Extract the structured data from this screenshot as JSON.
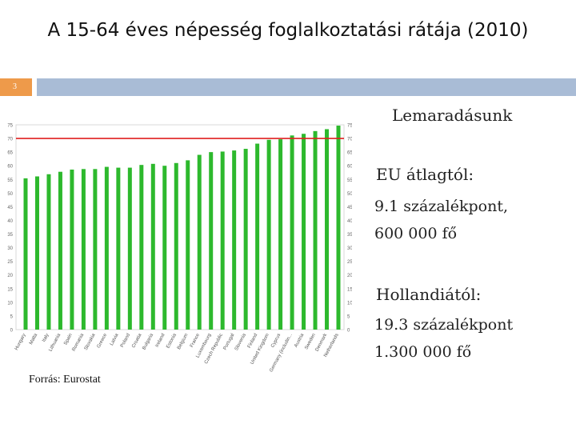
{
  "slide": {
    "title": "A 15-64 éves népesség foglalkoztatási rátája (2010)",
    "number": "3",
    "source": "Forrás: Eurostat"
  },
  "text": {
    "heading": "Lemaradásunk",
    "eu_heading": "EU átlagtól:",
    "eu_line1": "9.1  százalékpont,",
    "eu_line2": "600 000 fő",
    "nl_heading": "Hollandiától:",
    "nl_line1": "19.3 százalékpont",
    "nl_line2": "1.300 000 fő"
  },
  "colors": {
    "bar": "#2db92d",
    "reference_line": "#e02020",
    "header_bar": "#a9bcd6",
    "slide_number_bg": "#ee9a4a"
  },
  "chart_data": {
    "type": "bar",
    "title": "",
    "xlabel": "",
    "ylabel": "",
    "ylim": [
      0,
      75
    ],
    "yticks": [
      0,
      5,
      10,
      15,
      20,
      25,
      30,
      35,
      40,
      45,
      50,
      55,
      60,
      65,
      70,
      75
    ],
    "grid": false,
    "reference_line": 70,
    "categories": [
      "Hungary",
      "Malta",
      "Italy",
      "Lithuania",
      "Spain",
      "Romania",
      "Slovakia",
      "Greece",
      "Latvia",
      "Poland",
      "Croatia",
      "Bulgaria",
      "Ireland",
      "Estonia",
      "Belgium",
      "France",
      "Luxembourg",
      "Czech Republic",
      "Portugal",
      "Slovenia",
      "Finland",
      "United Kingdom",
      "Cyprus",
      "Germany (includin...",
      "Austria",
      "Sweden",
      "Denmark",
      "Netherlands"
    ],
    "values": [
      55.4,
      56.1,
      56.9,
      57.8,
      58.6,
      58.8,
      58.8,
      59.6,
      59.3,
      59.3,
      60.3,
      60.7,
      60.0,
      61.0,
      62.0,
      64.0,
      65.0,
      65.2,
      65.6,
      66.2,
      68.1,
      69.5,
      69.7,
      71.1,
      71.7,
      72.7,
      73.4,
      74.7
    ]
  }
}
